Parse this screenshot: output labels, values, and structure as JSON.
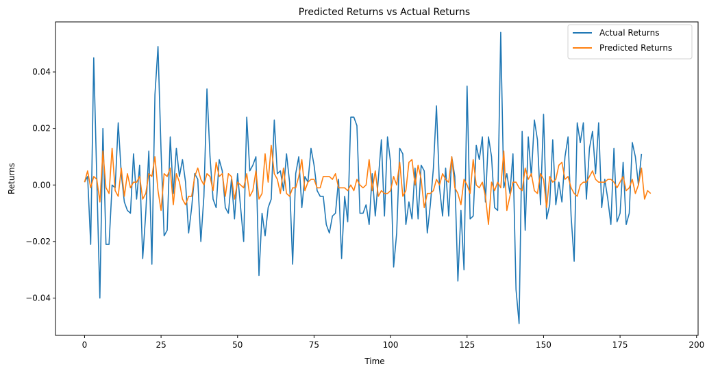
{
  "chart_data": {
    "type": "line",
    "title": "Predicted Returns vs Actual Returns",
    "xlabel": "Time",
    "ylabel": "Returns",
    "xlim": [
      -9.5,
      200.5
    ],
    "ylim": [
      -0.0532,
      0.0577
    ],
    "xticks": [
      0,
      25,
      50,
      75,
      100,
      125,
      150,
      175,
      200
    ],
    "xtick_labels": [
      "0",
      "25",
      "50",
      "75",
      "100",
      "125",
      "150",
      "175",
      "200"
    ],
    "yticks": [
      -0.04,
      -0.02,
      0.0,
      0.02,
      0.04
    ],
    "ytick_labels": [
      "−0.04",
      "−0.02",
      "0.00",
      "0.02",
      "0.04"
    ],
    "grid": false,
    "legend_position": "top-right",
    "series": [
      {
        "name": "Actual Returns",
        "color": "#1f77b4",
        "values": [
          0.001,
          0.003,
          -0.021,
          0.045,
          0.002,
          -0.04,
          0.02,
          -0.021,
          -0.021,
          0.0,
          -0.001,
          0.022,
          0.004,
          -0.006,
          -0.009,
          -0.01,
          0.011,
          -0.005,
          0.007,
          -0.026,
          -0.01,
          0.012,
          -0.028,
          0.032,
          0.049,
          0.012,
          -0.018,
          -0.016,
          0.017,
          -0.003,
          0.013,
          0.003,
          0.009,
          0.001,
          -0.017,
          -0.008,
          0.004,
          0.002,
          -0.02,
          -0.004,
          0.034,
          0.01,
          -0.005,
          -0.008,
          0.009,
          0.005,
          -0.008,
          -0.01,
          0.002,
          -0.012,
          0.004,
          -0.008,
          -0.02,
          0.024,
          0.005,
          0.007,
          0.01,
          -0.032,
          -0.01,
          -0.018,
          -0.008,
          -0.005,
          0.023,
          0.004,
          0.005,
          -0.002,
          0.011,
          0.001,
          -0.028,
          0.004,
          0.01,
          -0.008,
          0.003,
          0.001,
          0.013,
          0.007,
          -0.002,
          -0.004,
          -0.004,
          -0.014,
          -0.017,
          -0.011,
          -0.01,
          0.002,
          -0.026,
          -0.004,
          -0.013,
          0.024,
          0.024,
          0.021,
          -0.01,
          -0.01,
          -0.007,
          -0.014,
          0.004,
          -0.011,
          0.002,
          0.016,
          -0.011,
          0.017,
          0.008,
          -0.029,
          -0.017,
          0.013,
          0.011,
          -0.014,
          -0.006,
          -0.012,
          0.006,
          -0.012,
          0.007,
          0.005,
          -0.017,
          -0.007,
          0.006,
          0.028,
          -0.001,
          -0.011,
          0.006,
          -0.011,
          0.01,
          0.003,
          -0.034,
          -0.009,
          -0.03,
          0.035,
          -0.012,
          -0.011,
          0.014,
          0.009,
          0.017,
          -0.006,
          0.017,
          0.01,
          -0.008,
          -0.009,
          0.054,
          -0.001,
          0.004,
          -0.003,
          0.011,
          -0.037,
          -0.049,
          0.019,
          -0.016,
          0.017,
          0.003,
          0.023,
          0.016,
          -0.007,
          0.025,
          -0.012,
          -0.007,
          0.016,
          -0.007,
          0.001,
          -0.006,
          0.01,
          0.017,
          -0.011,
          -0.027,
          0.022,
          0.015,
          0.022,
          -0.005,
          0.013,
          0.019,
          0.004,
          0.022,
          -0.008,
          0.002,
          -0.005,
          -0.014,
          0.013,
          -0.013,
          -0.01,
          0.008,
          -0.014,
          -0.01,
          0.015,
          0.01,
          0.0,
          0.011
        ]
      },
      {
        "name": "Predicted Returns",
        "color": "#ff7f0e",
        "values": [
          0.001,
          0.005,
          -0.001,
          0.003,
          0.002,
          -0.006,
          0.012,
          -0.001,
          -0.003,
          0.013,
          -0.002,
          -0.004,
          0.006,
          -0.004,
          0.004,
          -0.001,
          0.001,
          0.001,
          0.003,
          -0.005,
          -0.003,
          0.004,
          0.003,
          0.01,
          -0.002,
          -0.009,
          0.004,
          0.003,
          0.006,
          -0.007,
          0.004,
          0.001,
          -0.005,
          -0.007,
          -0.004,
          -0.004,
          0.003,
          0.006,
          0.002,
          0.0,
          0.004,
          0.003,
          -0.002,
          0.008,
          0.003,
          0.004,
          -0.004,
          0.004,
          0.003,
          -0.005,
          0.001,
          0.0,
          -0.001,
          0.004,
          -0.004,
          -0.002,
          0.005,
          -0.005,
          -0.003,
          0.011,
          0.001,
          0.014,
          0.004,
          0.002,
          -0.003,
          0.006,
          -0.003,
          -0.004,
          -0.001,
          -0.001,
          0.003,
          0.009,
          -0.002,
          0.001,
          0.002,
          0.002,
          -0.001,
          -0.001,
          0.003,
          0.003,
          0.003,
          0.002,
          0.004,
          -0.001,
          -0.001,
          -0.001,
          -0.002,
          0.0,
          -0.002,
          0.002,
          0.0,
          -0.001,
          0.0,
          0.009,
          -0.002,
          0.005,
          -0.004,
          -0.002,
          -0.003,
          -0.003,
          -0.002,
          0.003,
          0.0,
          0.008,
          -0.004,
          -0.002,
          0.008,
          0.009,
          0.0,
          0.007,
          0.002,
          -0.008,
          -0.003,
          -0.003,
          -0.002,
          0.002,
          0.0,
          0.004,
          0.002,
          0.001,
          0.01,
          -0.001,
          -0.003,
          -0.007,
          0.002,
          0.0,
          -0.003,
          0.009,
          0.0,
          -0.001,
          0.001,
          -0.004,
          -0.014,
          0.001,
          -0.002,
          0.001,
          -0.001,
          0.012,
          -0.009,
          -0.004,
          0.001,
          0.001,
          -0.001,
          -0.002,
          0.006,
          0.002,
          0.004,
          -0.002,
          -0.003,
          0.004,
          0.002,
          -0.008,
          0.003,
          0.001,
          0.002,
          0.007,
          0.008,
          0.002,
          0.003,
          -0.001,
          -0.003,
          -0.004,
          0.0,
          0.001,
          0.001,
          0.003,
          0.005,
          0.002,
          0.001,
          0.001,
          0.001,
          0.002,
          0.002,
          0.001,
          -0.001,
          0.001,
          0.003,
          -0.002,
          -0.001,
          0.002,
          -0.003,
          0.0,
          0.006,
          -0.005,
          -0.002,
          -0.003
        ]
      }
    ]
  }
}
